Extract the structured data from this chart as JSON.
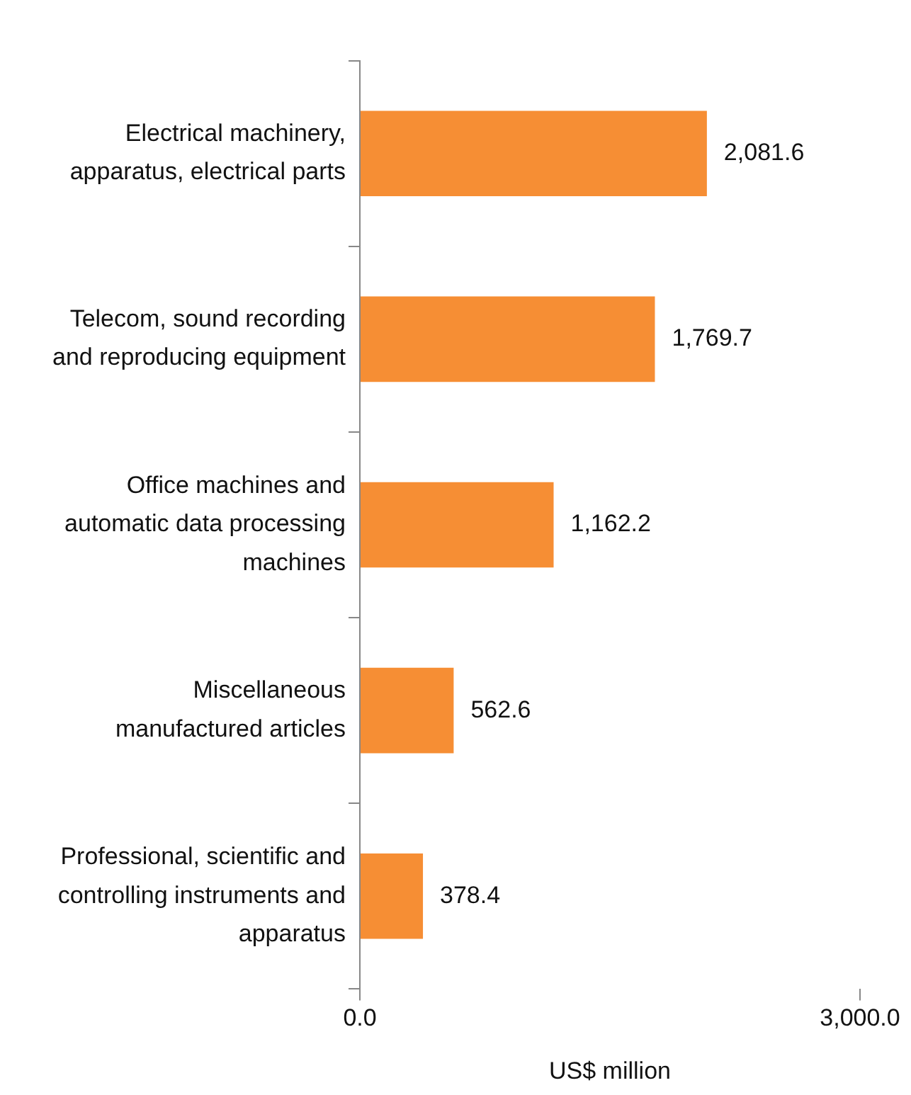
{
  "chart_data": {
    "type": "bar",
    "orientation": "horizontal",
    "xlabel": "US$ million",
    "categories": [
      "Electrical machinery, apparatus, electrical parts",
      "Telecom, sound recording and reproducing equipment",
      "Office machines and automatic data processing machines",
      "Miscellaneous manufactured articles",
      "Professional, scientific and controlling instruments and apparatus"
    ],
    "values": [
      2081.6,
      1769.7,
      1162.2,
      562.6,
      378.4
    ],
    "value_labels": [
      "2,081.6",
      "1,769.7",
      "1,162.2",
      "562.6",
      "378.4"
    ],
    "color": "#f68e34",
    "xlim": [
      0,
      3000
    ],
    "xticks": [
      {
        "value": 0,
        "label": "0.0"
      },
      {
        "value": 3000,
        "label": "3,000.0"
      }
    ],
    "grid": false,
    "legend": false
  }
}
